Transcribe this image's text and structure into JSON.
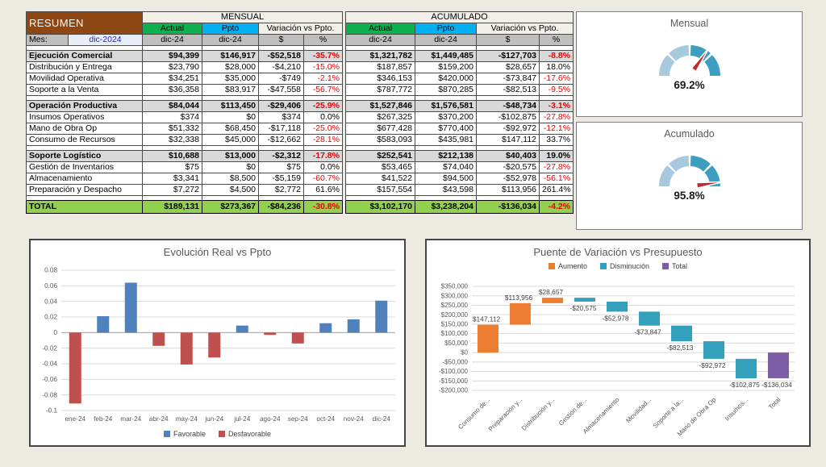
{
  "summary_table": {
    "title": "RESUMEN",
    "mes_label": "Mes:",
    "mes_value": "dic-2024",
    "group_headers": [
      "MENSUAL",
      "ACUMULADO"
    ],
    "col_headers": [
      "Actual",
      "Ppto",
      "Variación vs Ppto."
    ],
    "date_cells": [
      "dic-24",
      "dic-24",
      "$",
      "%"
    ],
    "sections": [
      {
        "header": {
          "label": "Ejecución Comercial",
          "values": [
            "$94,399",
            "$146,917",
            "-$52,518",
            "-35.7%",
            "$1,321,782",
            "$1,449,485",
            "-$127,703",
            "-8.8%"
          ]
        },
        "rows": [
          {
            "label": "Distribución y Entrega",
            "values": [
              "$23,790",
              "$28,000",
              "-$4,210",
              "-15.0%",
              "$187,857",
              "$159,200",
              "$28,657",
              "18.0%"
            ]
          },
          {
            "label": "Movilidad Operativa",
            "values": [
              "$34,251",
              "$35,000",
              "-$749",
              "-2.1%",
              "$346,153",
              "$420,000",
              "-$73,847",
              "-17.6%"
            ]
          },
          {
            "label": "Soporte a la Venta",
            "values": [
              "$36,358",
              "$83,917",
              "-$47,558",
              "-56.7%",
              "$787,772",
              "$870,285",
              "-$82,513",
              "-9.5%"
            ]
          }
        ]
      },
      {
        "header": {
          "label": "Operación Productiva",
          "values": [
            "$84,044",
            "$113,450",
            "-$29,406",
            "-25.9%",
            "$1,527,846",
            "$1,576,581",
            "-$48,734",
            "-3.1%"
          ]
        },
        "rows": [
          {
            "label": "Insumos Operativos",
            "values": [
              "$374",
              "$0",
              "$374",
              "0.0%",
              "$267,325",
              "$370,200",
              "-$102,875",
              "-27.8%"
            ]
          },
          {
            "label": "Mano de Obra Op",
            "values": [
              "$51,332",
              "$68,450",
              "-$17,118",
              "-25.0%",
              "$677,428",
              "$770,400",
              "-$92,972",
              "-12.1%"
            ]
          },
          {
            "label": "Consumo de Recursos",
            "values": [
              "$32,338",
              "$45,000",
              "-$12,662",
              "-28.1%",
              "$583,093",
              "$435,981",
              "$147,112",
              "33.7%"
            ]
          }
        ]
      },
      {
        "header": {
          "label": "Soporte Logístico",
          "values": [
            "$10,688",
            "$13,000",
            "-$2,312",
            "-17.8%",
            "$252,541",
            "$212,138",
            "$40,403",
            "19.0%"
          ]
        },
        "rows": [
          {
            "label": "Gestión de Inventarios",
            "values": [
              "$75",
              "$0",
              "$75",
              "0.0%",
              "$53,465",
              "$74,040",
              "-$20,575",
              "-27.8%"
            ]
          },
          {
            "label": "Almacenamiento",
            "values": [
              "$3,341",
              "$8,500",
              "-$5,159",
              "-60.7%",
              "$41,522",
              "$94,500",
              "-$52,978",
              "-56.1%"
            ]
          },
          {
            "label": "Preparación y Despacho",
            "values": [
              "$7,272",
              "$4,500",
              "$2,772",
              "61.6%",
              "$157,554",
              "$43,598",
              "$113,956",
              "261.4%"
            ]
          }
        ]
      }
    ],
    "total": {
      "label": "TOTAL",
      "values": [
        "$189,131",
        "$273,367",
        "-$84,236",
        "-30.8%",
        "$3,102,170",
        "$3,238,204",
        "-$136,034",
        "-4.2%"
      ]
    },
    "colors": {
      "title_bg": "#8E4612",
      "actual_bg": "#0EB04E",
      "ppto_bg": "#00B0F0",
      "date_bg": "#BFBFBF",
      "section_bg": "#D9D9D9",
      "total_bg": "#92D050",
      "negative": "#EE0000",
      "mes_value_color": "#2222D4"
    }
  },
  "gauges": [
    {
      "title": "Mensual",
      "value_label": "69.2%",
      "percent": 69.2
    },
    {
      "title": "Acumulado",
      "value_label": "95.8%",
      "percent": 95.8
    }
  ],
  "gauge_colors": {
    "segment_light": "#A6C9DE",
    "segment_dark": "#3E9EBF",
    "needle": "#C3292E"
  },
  "chart_data": [
    {
      "type": "bar",
      "title": "Evolución Real vs Ppto",
      "categories": [
        "ene-24",
        "feb-24",
        "mar-24",
        "abr-24",
        "may-24",
        "jun-24",
        "jul-24",
        "ago-24",
        "sep-24",
        "oct-24",
        "nov-24",
        "dic-24"
      ],
      "values": [
        -0.091,
        0.021,
        0.064,
        -0.017,
        -0.041,
        -0.032,
        0.009,
        -0.003,
        -0.014,
        0.012,
        0.017,
        0.041
      ],
      "legend": [
        "Favorable",
        "Desfavorable"
      ],
      "colors": {
        "favorable": "#4F81BD",
        "desfavorable": "#C0504D"
      },
      "xlabel": "",
      "ylabel": "",
      "ylim": [
        -0.1,
        0.08
      ],
      "ytick_step": 0.02,
      "ytick_labels": [
        "0.08",
        "0.06",
        "0.04",
        "0.02",
        "0",
        "-0.02",
        "-0.04",
        "-0.06",
        "-0.08",
        "-0.1"
      ],
      "grid": true,
      "legend_position": "bottom"
    },
    {
      "type": "waterfall",
      "title": "Puente de Variación vs Presupuesto",
      "categories": [
        "Consumo de...",
        "Preparación y...",
        "Distribución y...",
        "Gestión de...",
        "Almacenamiento",
        "Movilidad...",
        "Soporte a la...",
        "Mano de Obra Op",
        "Insumos...",
        "Total"
      ],
      "deltas": [
        147112,
        113956,
        28657,
        -20575,
        -52978,
        -73847,
        -82513,
        -92972,
        -102875
      ],
      "total": -136034,
      "labels": [
        "$147,112",
        "$113,956",
        "$28,657",
        "-$20,575",
        "-$52,978",
        "-$73,847",
        "-$82,513",
        "-$92,972",
        "-$102,875",
        "-$136,034"
      ],
      "legend": [
        "Aumento",
        "Disminución",
        "Total"
      ],
      "colors": {
        "aumento": "#ED7D31",
        "disminucion": "#33A1BC",
        "total": "#7C5DA6"
      },
      "xlabel": "",
      "ylabel": "",
      "ylim": [
        -200000,
        350000
      ],
      "ytick_step": 50000,
      "ytick_labels": [
        "$350,000",
        "$300,000",
        "$250,000",
        "$200,000",
        "$150,000",
        "$100,000",
        "$50,000",
        "$0",
        "-$50,000",
        "-$100,000",
        "-$150,000",
        "-$200,000"
      ],
      "grid": true,
      "legend_position": "top"
    }
  ]
}
